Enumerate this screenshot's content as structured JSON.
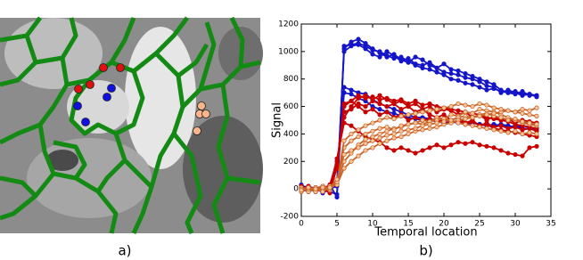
{
  "image_panel": {
    "caption": "a)"
  },
  "chart_data": {
    "type": "line",
    "caption": "b)",
    "xlabel": "Temporal location",
    "ylabel": "Signal",
    "xlim": [
      0,
      35
    ],
    "xticks": [
      0,
      5,
      10,
      15,
      20,
      25,
      30,
      35
    ],
    "ylim": [
      -200,
      1200
    ],
    "yticks": [
      -200,
      0,
      200,
      400,
      600,
      800,
      1000,
      1200
    ],
    "grid": false,
    "x": [
      0,
      1,
      2,
      3,
      4,
      5,
      6,
      7,
      8,
      9,
      10,
      11,
      12,
      13,
      14,
      15,
      16,
      17,
      18,
      19,
      20,
      21,
      22,
      23,
      24,
      25,
      26,
      27,
      28,
      29,
      30,
      31,
      32,
      33
    ],
    "series": [
      {
        "color": "#1414c8",
        "marker_face": "#1414c8",
        "values": [
          20,
          -10,
          10,
          0,
          -20,
          -40,
          1020,
          1070,
          1090,
          1060,
          1020,
          990,
          960,
          980,
          940,
          920,
          960,
          940,
          900,
          880,
          910,
          870,
          860,
          840,
          820,
          800,
          780,
          760,
          720,
          700,
          710,
          690,
          690,
          680
        ]
      },
      {
        "color": "#1414c8",
        "marker_face": "#1414c8",
        "values": [
          30,
          0,
          -20,
          10,
          0,
          20,
          1000,
          1040,
          1050,
          1020,
          980,
          960,
          1000,
          970,
          930,
          950,
          910,
          900,
          920,
          880,
          850,
          840,
          830,
          810,
          800,
          780,
          750,
          740,
          700,
          720,
          700,
          680,
          690,
          670
        ]
      },
      {
        "color": "#1414c8",
        "marker_face": "#1414c8",
        "values": [
          10,
          20,
          0,
          -10,
          30,
          -60,
          1040,
          1050,
          1060,
          1040,
          1010,
          1000,
          970,
          950,
          960,
          930,
          900,
          880,
          870,
          850,
          830,
          800,
          790,
          770,
          760,
          740,
          720,
          730,
          710,
          700,
          690,
          710,
          680,
          680
        ]
      },
      {
        "color": "#1414c8",
        "marker_face": "#1414c8",
        "values": [
          0,
          -20,
          0,
          20,
          -10,
          60,
          740,
          720,
          700,
          690,
          650,
          620,
          600,
          580,
          560,
          540,
          520,
          520,
          510,
          500,
          500,
          490,
          490,
          480,
          480,
          470,
          470,
          460,
          470,
          460,
          450,
          460,
          450,
          440
        ]
      },
      {
        "color": "#1414c8",
        "marker_face": "#1414c8",
        "values": [
          -10,
          0,
          10,
          -30,
          0,
          40,
          700,
          690,
          660,
          640,
          600,
          580,
          560,
          550,
          530,
          520,
          510,
          500,
          500,
          490,
          480,
          490,
          480,
          470,
          480,
          470,
          460,
          470,
          460,
          450,
          460,
          440,
          440,
          430
        ]
      },
      {
        "color": "#c80000",
        "marker_face": "#c80000",
        "values": [
          0,
          10,
          -20,
          0,
          30,
          200,
          520,
          600,
          660,
          680,
          650,
          680,
          650,
          620,
          640,
          600,
          620,
          580,
          600,
          560,
          580,
          570,
          540,
          560,
          520,
          540,
          500,
          530,
          500,
          510,
          480,
          500,
          490,
          480
        ]
      },
      {
        "color": "#c80000",
        "marker_face": "#c80000",
        "values": [
          20,
          -10,
          0,
          10,
          -20,
          180,
          620,
          640,
          600,
          560,
          580,
          540,
          560,
          520,
          540,
          500,
          520,
          500,
          510,
          490,
          500,
          480,
          500,
          470,
          490,
          460,
          480,
          450,
          460,
          440,
          450,
          430,
          440,
          420
        ]
      },
      {
        "color": "#c80000",
        "marker_face": "#c80000",
        "values": [
          -20,
          0,
          10,
          -10,
          0,
          150,
          560,
          580,
          620,
          600,
          640,
          620,
          600,
          620,
          580,
          600,
          560,
          580,
          540,
          520,
          540,
          500,
          520,
          480,
          500,
          460,
          470,
          440,
          430,
          420,
          410,
          400,
          390,
          380
        ]
      },
      {
        "color": "#c80000",
        "marker_face": "#c80000",
        "values": [
          10,
          -10,
          0,
          20,
          10,
          220,
          480,
          460,
          420,
          380,
          360,
          340,
          300,
          280,
          300,
          280,
          260,
          280,
          300,
          320,
          300,
          320,
          340,
          330,
          340,
          320,
          310,
          300,
          280,
          260,
          250,
          240,
          300,
          310
        ]
      },
      {
        "color": "#c80000",
        "marker_face": "#c80000",
        "values": [
          0,
          20,
          -10,
          0,
          -30,
          160,
          600,
          640,
          680,
          660,
          670,
          650,
          660,
          640,
          650,
          620,
          640,
          610,
          620,
          600,
          590,
          580,
          570,
          560,
          550,
          540,
          520,
          510,
          500,
          490,
          470,
          460,
          450,
          440
        ]
      },
      {
        "color": "#c8642a",
        "marker_face": "#fcc89b",
        "values": [
          0,
          10,
          -10,
          20,
          0,
          40,
          200,
          260,
          320,
          360,
          380,
          400,
          420,
          440,
          450,
          470,
          480,
          500,
          490,
          520,
          510,
          540,
          530,
          560,
          550,
          580,
          570,
          560,
          540,
          520,
          500,
          480,
          470,
          460
        ]
      },
      {
        "color": "#c8642a",
        "marker_face": "#fcc89b",
        "values": [
          -20,
          0,
          10,
          0,
          -10,
          60,
          300,
          350,
          380,
          400,
          420,
          440,
          450,
          430,
          460,
          470,
          480,
          470,
          490,
          500,
          510,
          500,
          520,
          530,
          520,
          540,
          550,
          530,
          520,
          500,
          510,
          490,
          480,
          470
        ]
      },
      {
        "color": "#c8642a",
        "marker_face": "#fcc89b",
        "values": [
          10,
          -20,
          0,
          -10,
          20,
          30,
          150,
          200,
          240,
          280,
          300,
          330,
          350,
          370,
          380,
          400,
          420,
          430,
          440,
          450,
          470,
          480,
          500,
          510,
          520,
          530,
          540,
          550,
          560,
          570,
          560,
          580,
          570,
          590
        ]
      },
      {
        "color": "#c8642a",
        "marker_face": "#fcc89b",
        "values": [
          0,
          0,
          -20,
          10,
          0,
          50,
          350,
          400,
          430,
          460,
          480,
          500,
          520,
          510,
          530,
          540,
          550,
          560,
          570,
          580,
          590,
          600,
          620,
          610,
          600,
          620,
          610,
          590,
          580,
          570,
          560,
          550,
          540,
          530
        ]
      },
      {
        "color": "#c8642a",
        "marker_face": "#fcc89b",
        "values": [
          -10,
          10,
          0,
          -20,
          10,
          70,
          250,
          280,
          300,
          330,
          350,
          370,
          390,
          400,
          420,
          430,
          440,
          460,
          470,
          480,
          490,
          500,
          480,
          470,
          460,
          450,
          440,
          430,
          420,
          410,
          420,
          400,
          410,
          400
        ]
      }
    ]
  }
}
